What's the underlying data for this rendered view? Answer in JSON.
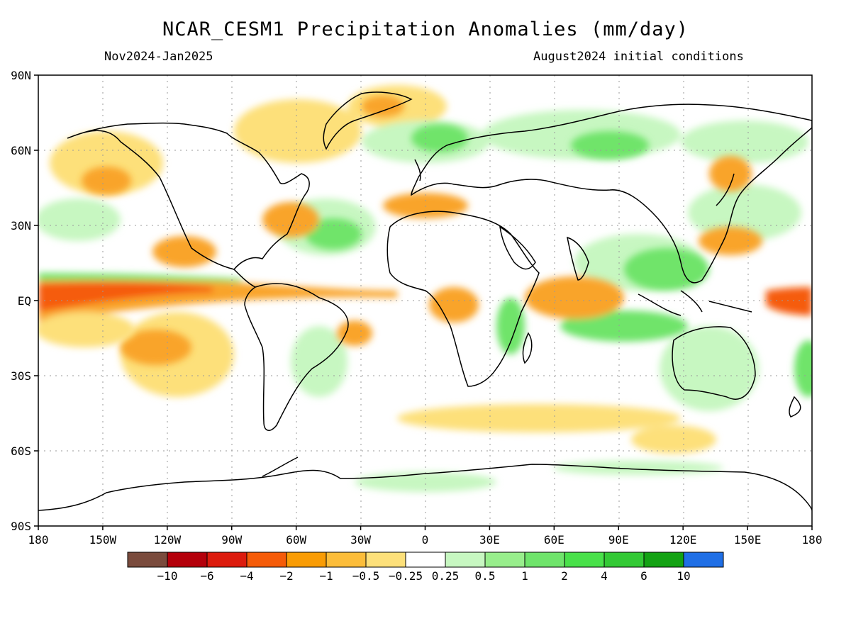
{
  "header": {
    "title": "NCAR_CESM1 Precipitation Anomalies (mm/day)",
    "period": "Nov2024-Jan2025",
    "init": "August2024 initial conditions"
  },
  "axes": {
    "lat_labels": [
      "90N",
      "60N",
      "30N",
      "EQ",
      "30S",
      "60S",
      "90S"
    ],
    "lon_labels": [
      "180",
      "150W",
      "120W",
      "90W",
      "60W",
      "30W",
      "0",
      "30E",
      "60E",
      "90E",
      "120E",
      "150E",
      "180"
    ]
  },
  "colorbar": {
    "colors": [
      "#7a4b3d",
      "#b4000b",
      "#dc1b0d",
      "#f55b08",
      "#f99c05",
      "#fcbd3a",
      "#fde07a",
      "#ffffff",
      "#c7f7c1",
      "#98ee8c",
      "#6fe46b",
      "#49e14a",
      "#33c935",
      "#13a213",
      "#1f6fe6"
    ],
    "labels": [
      "-10",
      "-6",
      "-4",
      "-2",
      "-1",
      "-0.5",
      "-0.25",
      "0.25",
      "0.5",
      "1",
      "2",
      "4",
      "6",
      "10"
    ]
  },
  "palette": {
    "dry_strong": "#e05a1a",
    "dry": "#f9a42a",
    "dry_light": "#fde07a",
    "wet_light": "#c7f7c1",
    "wet": "#6fe46b",
    "wet_strong": "#33c935"
  }
}
